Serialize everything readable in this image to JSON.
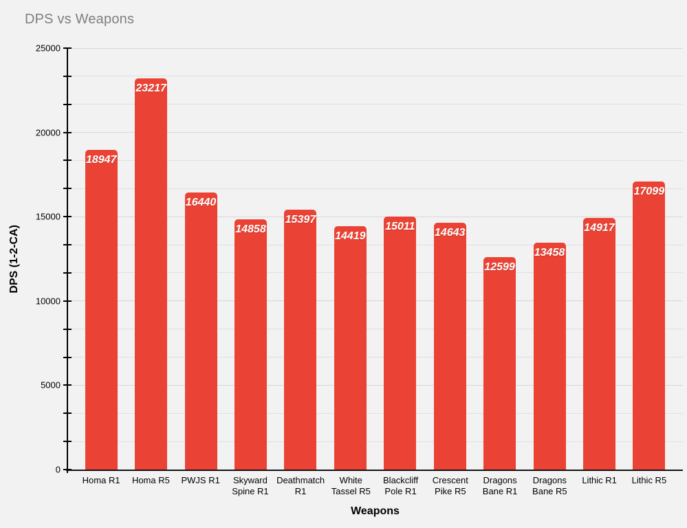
{
  "chart": {
    "title": "DPS vs Weapons",
    "x_axis_title": "Weapons",
    "y_axis_title": "DPS (1-2-CA)"
  },
  "chart_data": {
    "type": "bar",
    "title": "DPS vs Weapons",
    "xlabel": "Weapons",
    "ylabel": "DPS (1-2-CA)",
    "categories": [
      "Homa R1",
      "Homa R5",
      "PWJS R1",
      "Skyward Spine R1",
      "Deathmatch R1",
      "White Tassel R5",
      "Blackcliff Pole R1",
      "Crescent Pike R5",
      "Dragons Bane R1",
      "Dragons Bane R5",
      "Lithic R1",
      "Lithic R5"
    ],
    "values": [
      18947,
      23217,
      16440,
      14858,
      15397,
      14419,
      15011,
      14643,
      12599,
      13458,
      14917,
      17099
    ],
    "ylim": [
      0,
      25000
    ],
    "y_major_ticks": [
      0,
      5000,
      10000,
      15000,
      20000,
      25000
    ],
    "y_minor_steps_total": 15,
    "grid": true,
    "legend_position": "none",
    "colors": {
      "bar": "#EA4335",
      "data_label": "#FFFFFF",
      "background": "#F2F2F2",
      "title_text": "#7F7F7F",
      "axis": "#000000"
    }
  }
}
